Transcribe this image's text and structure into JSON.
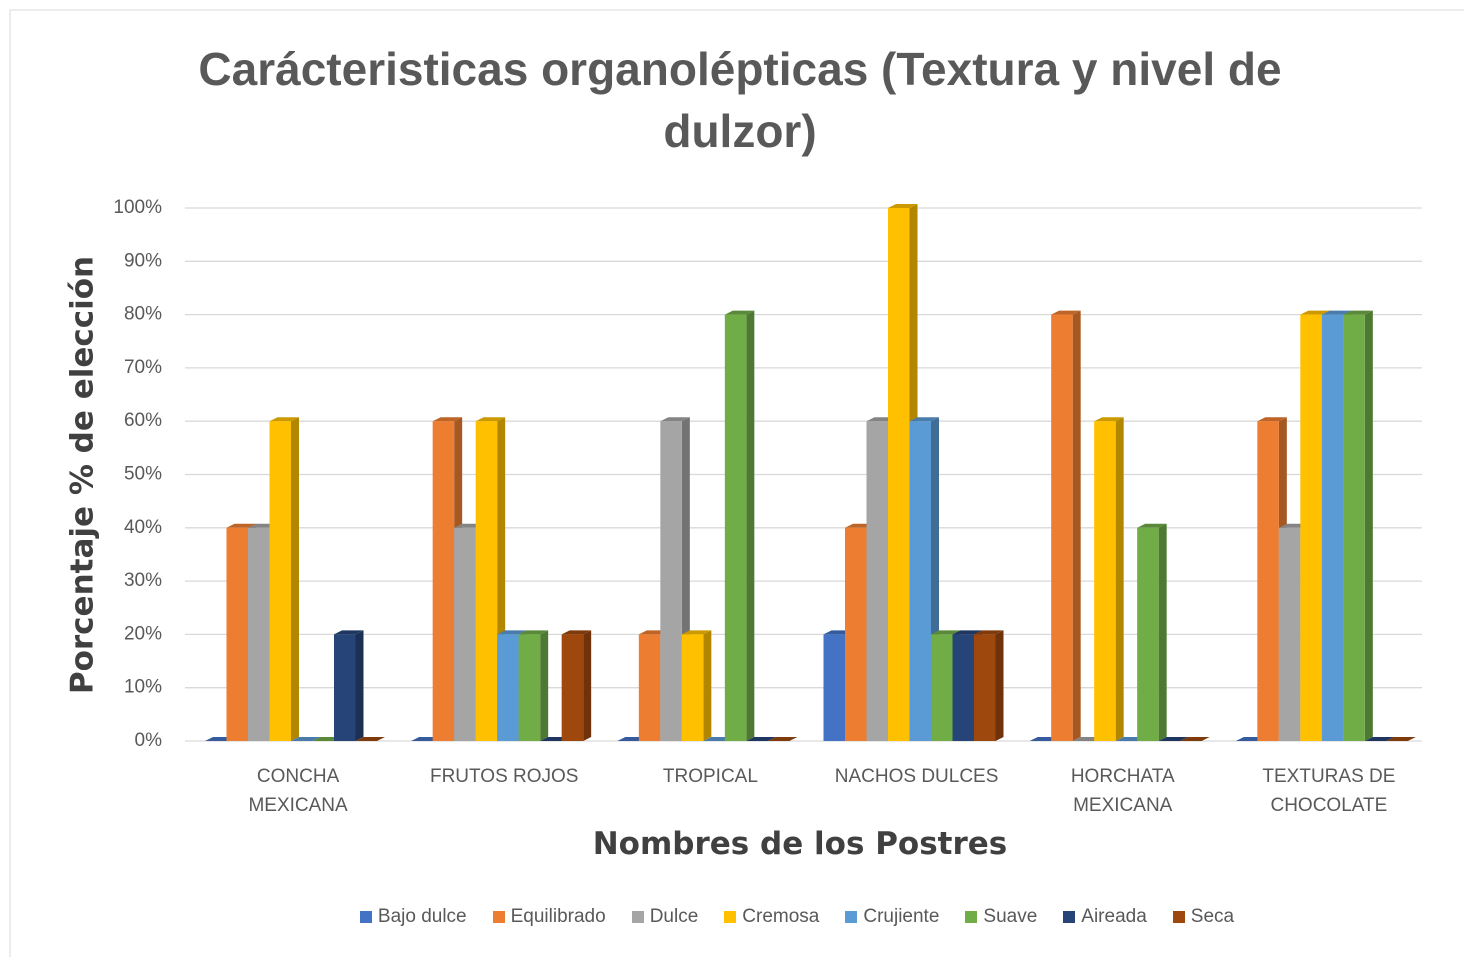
{
  "chart_data": {
    "type": "bar3d",
    "title": "Carácteristicas organolépticas (Textura y nivel de dulzor)",
    "x_label": "Nombres de los Postres",
    "y_label": "Porcentaje % de elección",
    "categories": [
      "CONCHA MEXICANA",
      "FRUTOS ROJOS",
      "TROPICAL",
      "NACHOS DULCES",
      "HORCHATA MEXICANA",
      "TEXTURAS DE CHOCOLATE"
    ],
    "series": [
      {
        "name": "Bajo dulce",
        "color": "#4472c4",
        "values": [
          0,
          0,
          0,
          20,
          0,
          0
        ]
      },
      {
        "name": "Equilibrado",
        "color": "#ed7d31",
        "values": [
          40,
          60,
          20,
          40,
          80,
          60
        ]
      },
      {
        "name": "Dulce",
        "color": "#a5a5a5",
        "values": [
          40,
          40,
          60,
          60,
          0,
          40
        ]
      },
      {
        "name": "Cremosa",
        "color": "#ffc000",
        "values": [
          60,
          60,
          20,
          100,
          60,
          80
        ]
      },
      {
        "name": "Crujiente",
        "color": "#5b9bd5",
        "values": [
          0,
          20,
          0,
          60,
          0,
          80
        ]
      },
      {
        "name": "Suave",
        "color": "#70ad47",
        "values": [
          0,
          20,
          80,
          20,
          40,
          80
        ]
      },
      {
        "name": "Aireada",
        "color": "#264478",
        "values": [
          20,
          0,
          0,
          20,
          0,
          0
        ]
      },
      {
        "name": "Seca",
        "color": "#9e480e",
        "values": [
          0,
          20,
          0,
          20,
          0,
          0
        ]
      }
    ],
    "ylim": [
      0,
      100
    ],
    "yticks": [
      {
        "value": 0,
        "label": "0%"
      },
      {
        "value": 10,
        "label": "10%"
      },
      {
        "value": 20,
        "label": "20%"
      },
      {
        "value": 30,
        "label": "30%"
      },
      {
        "value": 40,
        "label": "40%"
      },
      {
        "value": 50,
        "label": "50%"
      },
      {
        "value": 60,
        "label": "60%"
      },
      {
        "value": 70,
        "label": "70%"
      },
      {
        "value": 80,
        "label": "80%"
      },
      {
        "value": 90,
        "label": "90%"
      },
      {
        "value": 100,
        "label": "100%"
      }
    ],
    "grid": true,
    "legend": "bottom"
  }
}
